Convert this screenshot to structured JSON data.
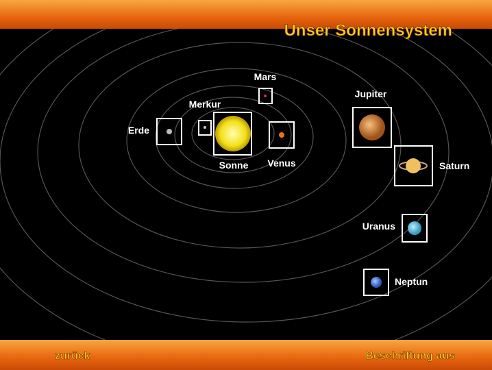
{
  "header": {
    "title": "Unser Sonnensystem"
  },
  "planets": [
    {
      "label": "Sonne"
    },
    {
      "label": "Merkur"
    },
    {
      "label": "Venus"
    },
    {
      "label": "Erde"
    },
    {
      "label": "Mars"
    },
    {
      "label": "Jupiter"
    },
    {
      "label": "Saturn"
    },
    {
      "label": "Uranus"
    },
    {
      "label": "Neptun"
    }
  ],
  "footer": {
    "back": "zurück",
    "labels_toggle": "Beschriftung aus"
  }
}
